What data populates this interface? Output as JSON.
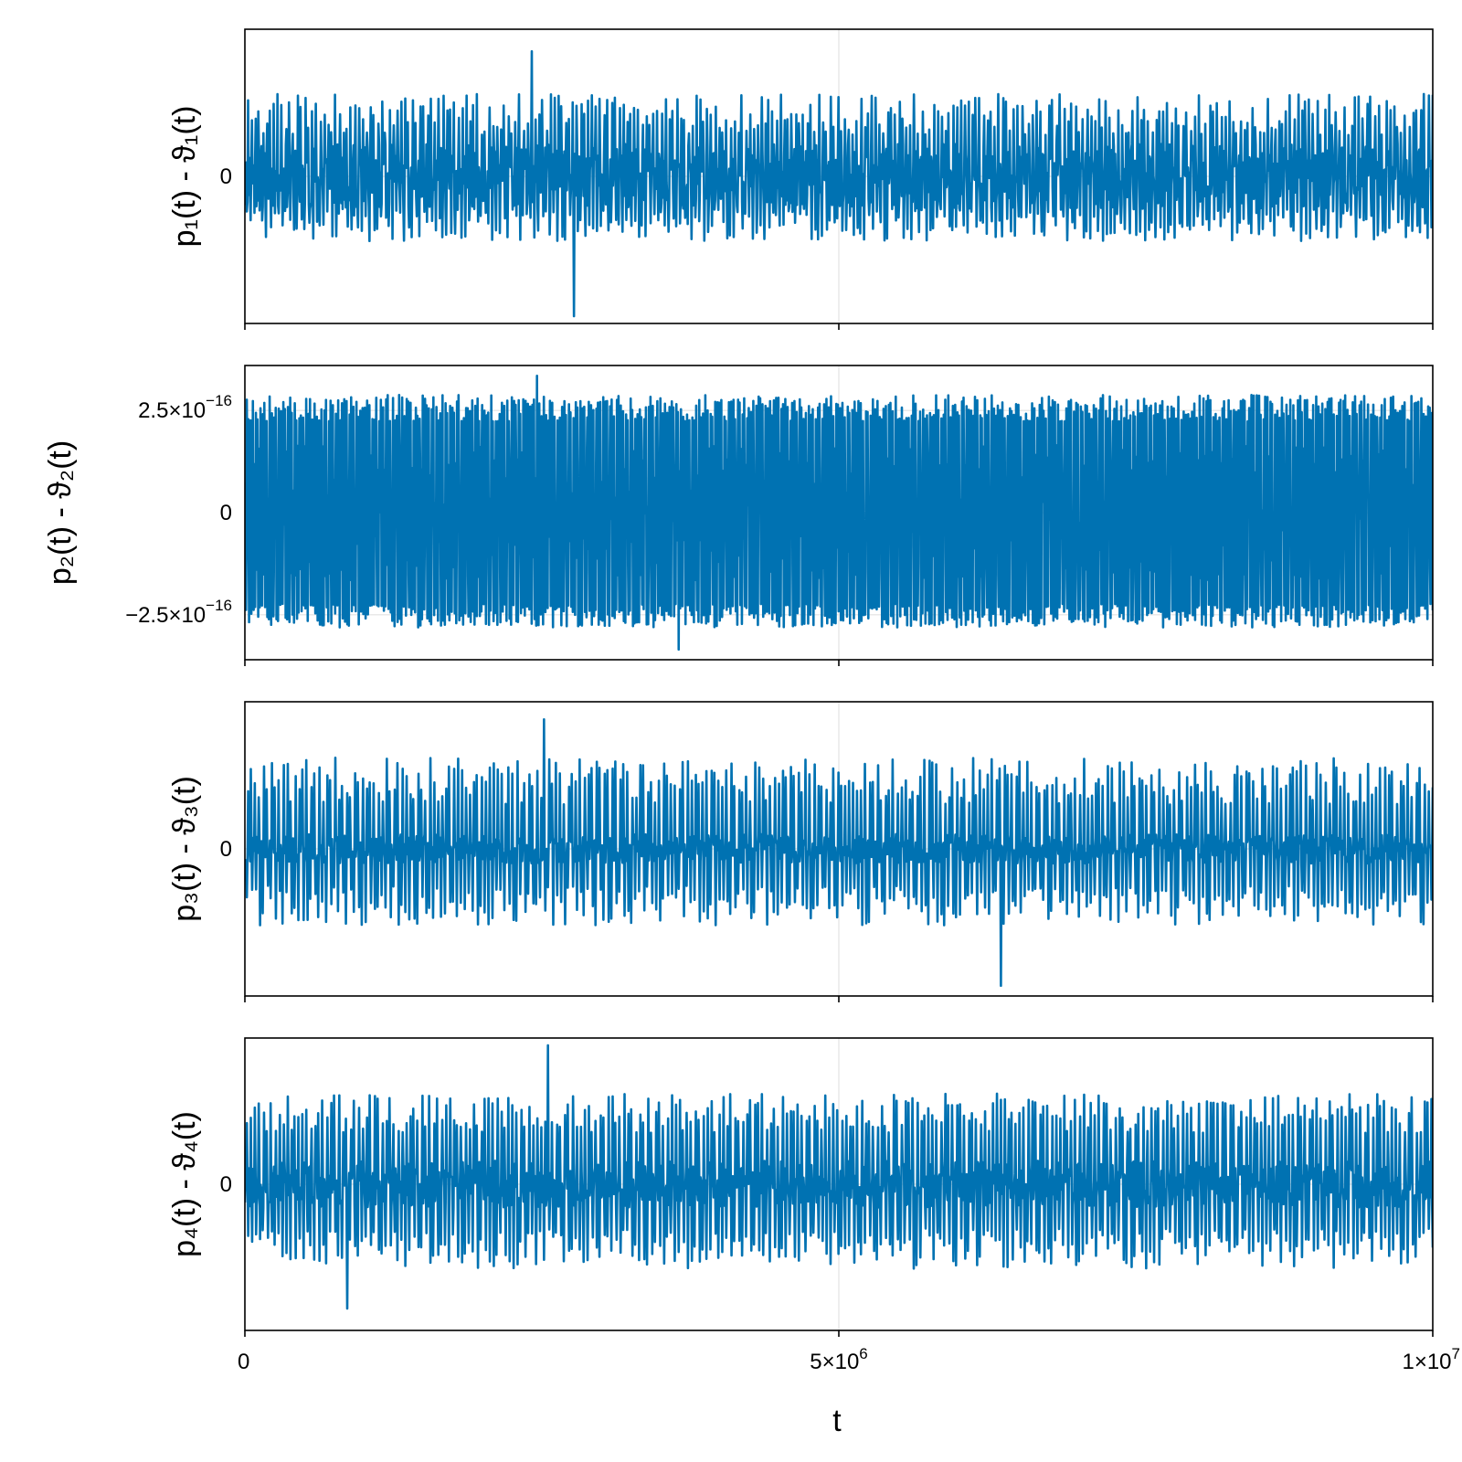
{
  "chart_data": [
    {
      "type": "line",
      "ylabel": "p₁(t) - ϑ₁(t)",
      "yticks": [
        {
          "value": 0,
          "label": "0"
        }
      ],
      "ylim": [
        -1.0,
        1.0
      ],
      "xlim": [
        0,
        10000000
      ],
      "series_color": "#0072b2",
      "signal": {
        "n_peaks": 310,
        "base": 0.22,
        "peak_pos": [
          0.28,
          0.56
        ],
        "peak_neg": [
          0.22,
          0.44
        ],
        "extreme_pos": 0.85,
        "extreme_neg": -0.95,
        "seed": 11
      }
    },
    {
      "type": "line",
      "ylabel": "p₂(t) - ϑ₂(t)",
      "yticks": [
        {
          "value": 2.5e-16,
          "label": "2.5×10",
          "exp": "−16"
        },
        {
          "value": 0,
          "label": "0"
        },
        {
          "value": -2.5e-16,
          "label": "−2.5×10",
          "exp": "−16"
        }
      ],
      "ylim": [
        -3.6e-16,
        3.6e-16
      ],
      "xlim": [
        0,
        10000000
      ],
      "series_color": "#0072b2",
      "signal": {
        "n_peaks": 520,
        "base": 0.46,
        "peak_pos": [
          0.62,
          0.8
        ],
        "peak_neg": [
          0.62,
          0.78
        ],
        "extreme_pos": 0.93,
        "extreme_neg": -0.93,
        "seed": 23
      }
    },
    {
      "type": "line",
      "ylabel": "p₃(t) - ϑ₃(t)",
      "yticks": [
        {
          "value": 0,
          "label": "0"
        }
      ],
      "ylim": [
        -1.0,
        1.0
      ],
      "xlim": [
        0,
        10000000
      ],
      "series_color": "#0072b2",
      "signal": {
        "n_peaks": 300,
        "base": 0.1,
        "peak_pos": [
          0.3,
          0.62
        ],
        "peak_neg": [
          0.25,
          0.52
        ],
        "extreme_pos": 0.88,
        "extreme_neg": -0.93,
        "seed": 37
      }
    },
    {
      "type": "line",
      "ylabel": "p₄(t) - ϑ₄(t)",
      "yticks": [
        {
          "value": 0,
          "label": "0"
        }
      ],
      "ylim": [
        -1.0,
        1.0
      ],
      "xlim": [
        0,
        10000000
      ],
      "series_color": "#0072b2",
      "signal": {
        "n_peaks": 300,
        "base": 0.16,
        "peak_pos": [
          0.35,
          0.62
        ],
        "peak_neg": [
          0.3,
          0.58
        ],
        "extreme_pos": 0.95,
        "extreme_neg": -0.85,
        "seed": 53
      }
    }
  ],
  "xaxis": {
    "label": "t",
    "ticks": [
      {
        "value": 0,
        "label": "0"
      },
      {
        "value": 5000000,
        "label": "5×10",
        "exp": "6"
      },
      {
        "value": 10000000,
        "label": "1×10",
        "exp": "7"
      }
    ]
  }
}
